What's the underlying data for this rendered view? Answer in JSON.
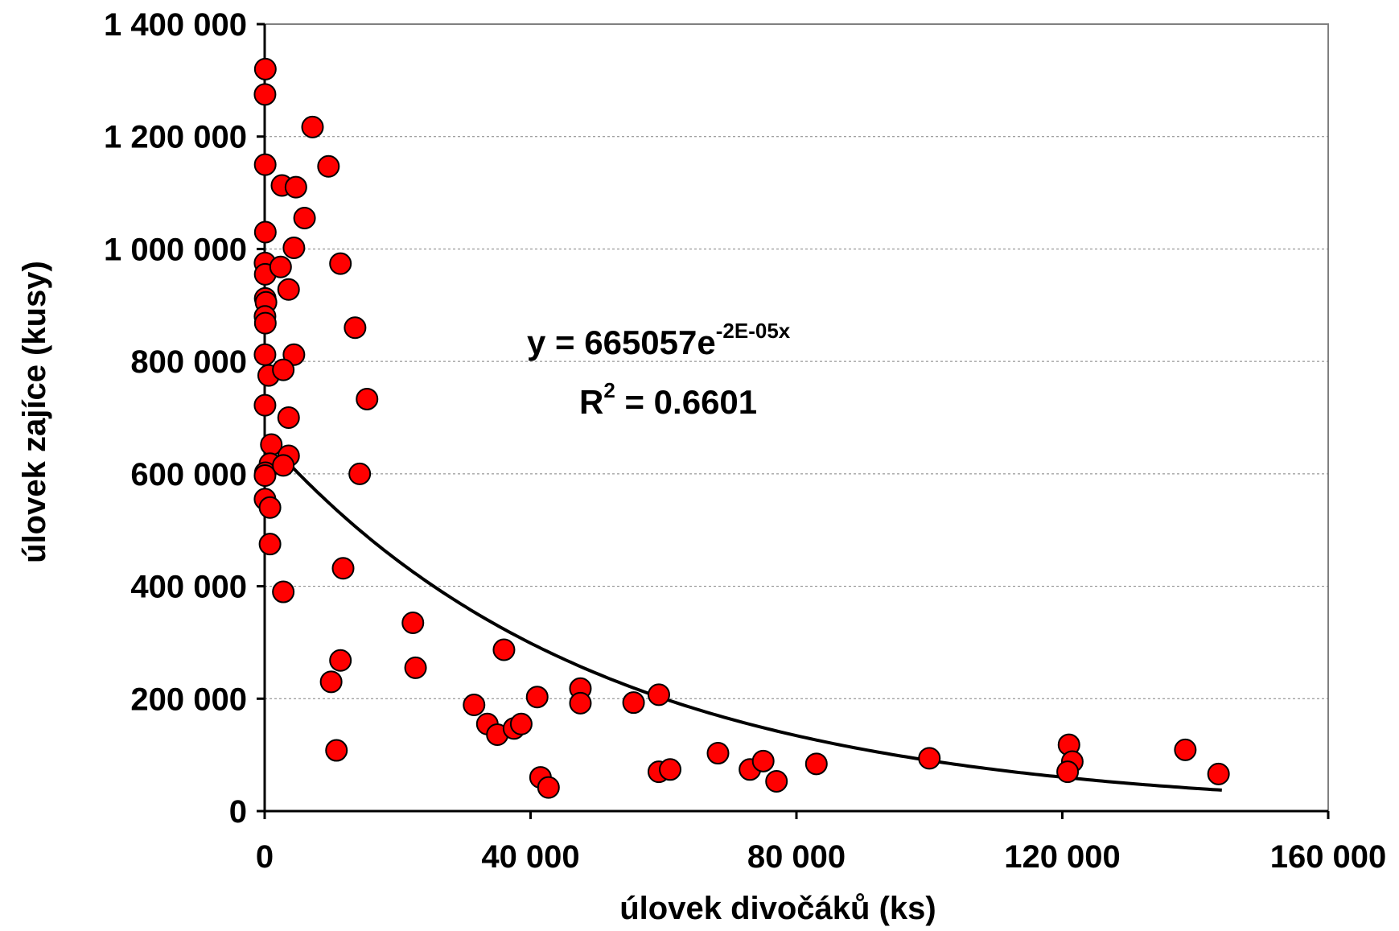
{
  "chart_data": {
    "type": "scatter",
    "xlabel": "úlovek divočáků (ks)",
    "ylabel": "úlovek zajíce (kusy)",
    "xlim": [
      0,
      160000
    ],
    "ylim": [
      0,
      1400000
    ],
    "x_ticks": [
      0,
      40000,
      80000,
      120000,
      160000
    ],
    "x_tick_labels": [
      "0",
      "40 000",
      "80 000",
      "120 000",
      "160 000"
    ],
    "y_ticks": [
      0,
      200000,
      400000,
      600000,
      800000,
      1000000,
      1200000,
      1400000
    ],
    "y_tick_labels": [
      "0",
      "200 000",
      "400 000",
      "600 000",
      "800 000",
      "1 000 000",
      "1 200 000",
      "1 400 000"
    ],
    "grid": "horizontal",
    "marker_color": "#ff0000",
    "trendline_color": "#000000",
    "trendline": {
      "type": "exponential",
      "a": 665057,
      "b": -2e-05,
      "x_range": [
        0,
        144000
      ]
    },
    "equation": {
      "prefix": "y = 665057e",
      "exponent": "-2E-05x",
      "r2_prefix": "R",
      "r2_sup": "2",
      "r2_suffix": " = 0.6601"
    },
    "series": [
      {
        "points": [
          [
            100,
            1320000
          ],
          [
            50,
            1275000
          ],
          [
            80,
            1150000
          ],
          [
            100,
            1030000
          ],
          [
            50,
            975000
          ],
          [
            80,
            955000
          ],
          [
            80,
            912000
          ],
          [
            200,
            905000
          ],
          [
            50,
            880000
          ],
          [
            100,
            868000
          ],
          [
            50,
            812000
          ],
          [
            600,
            775000
          ],
          [
            50,
            722000
          ],
          [
            1000,
            652000
          ],
          [
            800,
            618000
          ],
          [
            100,
            602000
          ],
          [
            50,
            597000
          ],
          [
            50,
            555000
          ],
          [
            800,
            540000
          ],
          [
            800,
            475000
          ],
          [
            7200,
            1217000
          ],
          [
            9600,
            1147000
          ],
          [
            2600,
            1113000
          ],
          [
            4700,
            1110000
          ],
          [
            6000,
            1055000
          ],
          [
            4400,
            1002000
          ],
          [
            2400,
            968000
          ],
          [
            3600,
            928000
          ],
          [
            11400,
            974000
          ],
          [
            13600,
            860000
          ],
          [
            4400,
            812000
          ],
          [
            2800,
            785000
          ],
          [
            15400,
            733000
          ],
          [
            3600,
            700000
          ],
          [
            3600,
            632000
          ],
          [
            2800,
            615000
          ],
          [
            14300,
            600000
          ],
          [
            11800,
            432000
          ],
          [
            2800,
            390000
          ],
          [
            22300,
            335000
          ],
          [
            22700,
            255000
          ],
          [
            36000,
            287000
          ],
          [
            11400,
            268000
          ],
          [
            10000,
            230000
          ],
          [
            10800,
            108000
          ],
          [
            31500,
            189000
          ],
          [
            33500,
            155000
          ],
          [
            35000,
            136000
          ],
          [
            37500,
            147000
          ],
          [
            38600,
            155000
          ],
          [
            41000,
            203000
          ],
          [
            41500,
            60000
          ],
          [
            42700,
            42000
          ],
          [
            47500,
            218000
          ],
          [
            47500,
            192000
          ],
          [
            55500,
            193000
          ],
          [
            59300,
            207000
          ],
          [
            59300,
            70000
          ],
          [
            61000,
            74000
          ],
          [
            68200,
            103000
          ],
          [
            73000,
            74000
          ],
          [
            75000,
            89000
          ],
          [
            77000,
            53000
          ],
          [
            83000,
            84000
          ],
          [
            100000,
            94000
          ],
          [
            121000,
            118000
          ],
          [
            121500,
            88000
          ],
          [
            120800,
            70000
          ],
          [
            138500,
            109000
          ],
          [
            143500,
            66000
          ]
        ]
      }
    ]
  }
}
